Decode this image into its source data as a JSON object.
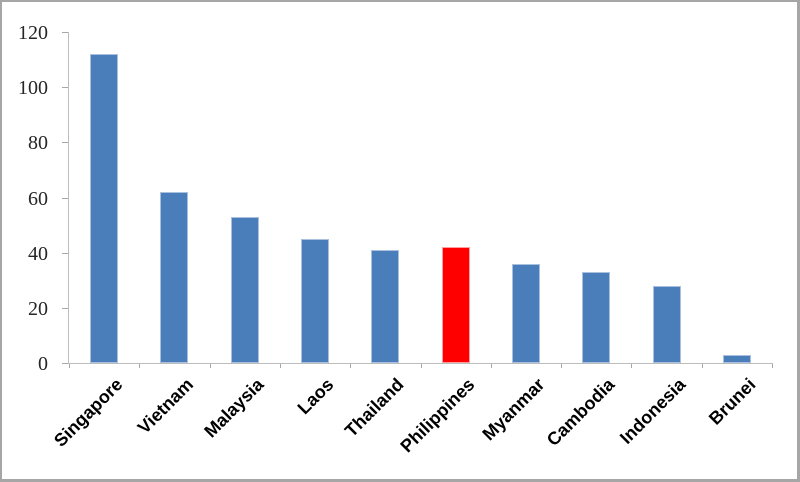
{
  "chart_data": {
    "type": "bar",
    "title": "",
    "xlabel": "",
    "ylabel": "",
    "categories": [
      "Singapore",
      "Vietnam",
      "Malaysia",
      "Laos",
      "Thailand",
      "Philippines",
      "Myanmar",
      "Cambodia",
      "Indonesia",
      "Brunei"
    ],
    "values": [
      112,
      62,
      53,
      45,
      41,
      42,
      36,
      33,
      28,
      3
    ],
    "highlighted_category": "Philippines",
    "ylim": [
      0,
      120
    ],
    "yticks": [
      0,
      20,
      40,
      60,
      80,
      100,
      120
    ],
    "grid": false,
    "legend": false,
    "colors": {
      "bar_fill": "#4a7ebb",
      "bar_border": "#a9c1de",
      "highlight_fill": "#ff0000",
      "highlight_border": "#ff9e9e",
      "axis_line": "#bdbdbd",
      "tick_label": "#262626",
      "category_label": "#000000",
      "background": "#ffffff",
      "frame_border": "#a6a6a6"
    }
  }
}
